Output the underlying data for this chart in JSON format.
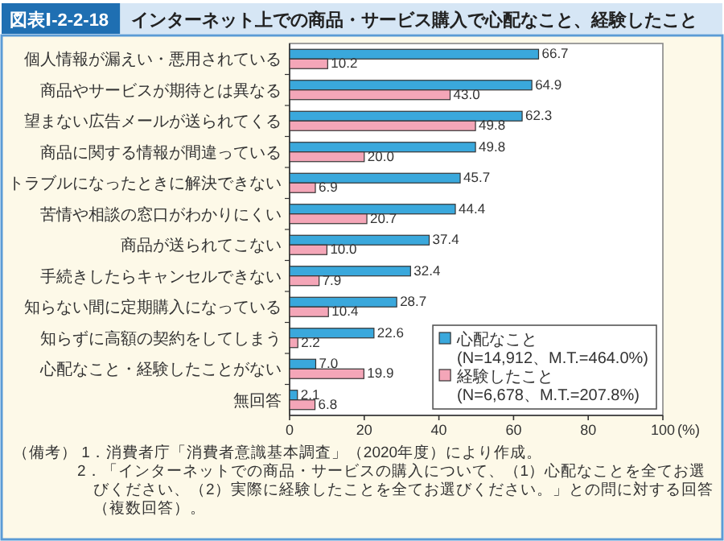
{
  "chart_data": {
    "type": "bar",
    "orientation": "horizontal",
    "title": "図表Ⅰ-2-2-18",
    "subtitle": "インターネット上での商品・サービス購入で心配なこと、経験したこと",
    "categories": [
      "個人情報が漏えい・悪用されている",
      "商品やサービスが期待とは異なる",
      "望まない広告メールが送られてくる",
      "商品に関する情報が間違っている",
      "トラブルになったときに解決できない",
      "苦情や相談の窓口がわかりにくい",
      "商品が送られてこない",
      "手続きしたらキャンセルできない",
      "知らない間に定期購入になっている",
      "知らずに高額の契約をしてしまう",
      "心配なこと・経験したことがない",
      "無回答"
    ],
    "series": [
      {
        "name": "心配なこと\n(N=14,912、M.T.=464.0%)",
        "color": "#3aa8dc",
        "values": [
          66.7,
          64.9,
          62.3,
          49.8,
          45.7,
          44.4,
          37.4,
          32.4,
          28.7,
          22.6,
          7.0,
          2.1
        ],
        "value_labels": [
          "66.7",
          "64.9",
          "62.3",
          "49.8",
          "45.7",
          "44.4",
          "37.4",
          "32.4",
          "28.7",
          "22.6",
          "7.0",
          "2.1"
        ]
      },
      {
        "name": "経験したこと\n(N=6,678、M.T.=207.8%)",
        "color": "#f4a6b8",
        "values": [
          10.2,
          43.0,
          49.8,
          20.0,
          6.9,
          20.7,
          10.0,
          7.9,
          10.4,
          2.2,
          19.9,
          6.8
        ],
        "value_labels": [
          "10.2",
          "43.0",
          "49.8",
          "20.0",
          "6.9",
          "20.7",
          "10.0",
          "7.9",
          "10.4",
          "2.2",
          "19.9",
          "6.8"
        ]
      }
    ],
    "xlim": [
      0,
      100
    ],
    "xticks": [
      0,
      20,
      40,
      60,
      80,
      100
    ],
    "xlabel": "(%)",
    "legend": "bottom right",
    "annotations": [
      "（備考） 1．消費者庁「消費者意識基本調査」（2020年度）により作成。",
      "2．「インターネットでの商品・サービスの購入について、（1）心配なことを全てお選びください、（2）実際に経験したことを全てお選びください。」との問に対する回答（複数回答）。"
    ]
  }
}
